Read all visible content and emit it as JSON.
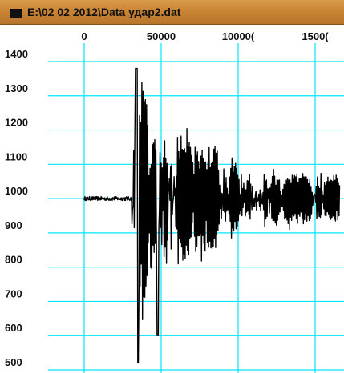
{
  "window": {
    "title": "E:\\02 02 2012\\Data удар2.dat",
    "icon": "window-icon"
  },
  "chart_data": {
    "type": "line",
    "title": "",
    "xlabel": "",
    "ylabel": "",
    "x_ticks": [
      "0",
      "50000",
      "10000(",
      "1500("
    ],
    "x_tick_values": [
      0,
      50000,
      100000,
      150000
    ],
    "y_ticks": [
      "1400",
      "1300",
      "1200",
      "1100",
      "1000",
      "900",
      "800",
      "700",
      "600",
      "500"
    ],
    "y_tick_values": [
      1400,
      1300,
      1200,
      1100,
      1000,
      900,
      800,
      700,
      600,
      500
    ],
    "xlim": [
      -29000,
      167000
    ],
    "ylim": [
      485,
      1435
    ],
    "grid": true,
    "grid_color": "#00e5ff",
    "line_color": "#000000",
    "series": [
      {
        "description_points": [
          [
            0,
            1000
          ],
          [
            20000,
            1000
          ],
          [
            30000,
            1000
          ],
          [
            32000,
            1030
          ],
          [
            33000,
            1380
          ],
          [
            34000,
            520
          ],
          [
            38000,
            1360
          ],
          [
            40000,
            720
          ],
          [
            42000,
            1310
          ],
          [
            44000,
            600
          ],
          [
            48000,
            1330
          ],
          [
            52000,
            760
          ],
          [
            56000,
            1290
          ],
          [
            60000,
            750
          ],
          [
            64000,
            1270
          ],
          [
            68000,
            800
          ],
          [
            72000,
            1240
          ],
          [
            78000,
            810
          ],
          [
            84000,
            1200
          ],
          [
            90000,
            850
          ],
          [
            100000,
            1150
          ],
          [
            110000,
            880
          ],
          [
            120000,
            1090
          ],
          [
            130000,
            910
          ],
          [
            140000,
            1060
          ],
          [
            150000,
            930
          ],
          [
            160000,
            1040
          ],
          [
            166000,
            960
          ]
        ]
      }
    ]
  }
}
